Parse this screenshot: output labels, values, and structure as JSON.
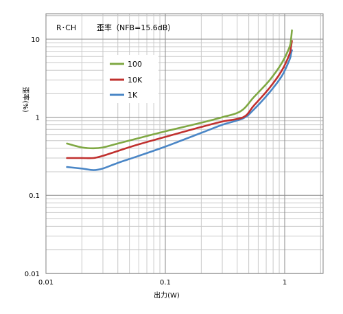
{
  "chart_data": {
    "type": "line",
    "title_left": "R･CH",
    "title_right": "歪率（NFB=15.6dB）",
    "xlabel": "出力(W)",
    "ylabel": "歪率(%)",
    "x_scale": "log",
    "y_scale": "log",
    "xlim": [
      0.01,
      2
    ],
    "ylim": [
      0.01,
      20
    ],
    "x_tick_labels": [
      "0.01",
      "0.1",
      "1"
    ],
    "y_tick_labels": [
      "0.01",
      "0.1",
      "1",
      "10"
    ],
    "grid": true,
    "legend_position": "top-left",
    "series": [
      {
        "name": "100",
        "color": "#7fa843",
        "x": [
          0.015,
          0.02,
          0.025,
          0.03,
          0.04,
          0.06,
          0.1,
          0.2,
          0.3,
          0.43,
          0.55,
          0.75,
          0.95,
          1.1,
          1.13,
          1.15
        ],
        "y": [
          0.46,
          0.41,
          0.4,
          0.41,
          0.46,
          0.54,
          0.66,
          0.85,
          1.0,
          1.2,
          1.8,
          3.0,
          5.0,
          8.0,
          10.0,
          13.0
        ]
      },
      {
        "name": "10K",
        "color": "#c0302e",
        "x": [
          0.015,
          0.02,
          0.025,
          0.03,
          0.04,
          0.06,
          0.1,
          0.2,
          0.3,
          0.45,
          0.55,
          0.75,
          0.95,
          1.1,
          1.13,
          1.15
        ],
        "y": [
          0.3,
          0.3,
          0.3,
          0.32,
          0.37,
          0.45,
          0.56,
          0.75,
          0.88,
          1.0,
          1.4,
          2.4,
          4.0,
          6.5,
          8.0,
          9.5
        ]
      },
      {
        "name": "1K",
        "color": "#4a86c6",
        "x": [
          0.015,
          0.02,
          0.025,
          0.03,
          0.04,
          0.06,
          0.1,
          0.2,
          0.3,
          0.45,
          0.55,
          0.75,
          0.95,
          1.1,
          1.13,
          1.15
        ],
        "y": [
          0.23,
          0.22,
          0.21,
          0.22,
          0.26,
          0.32,
          0.42,
          0.63,
          0.8,
          0.97,
          1.25,
          2.1,
          3.4,
          5.5,
          6.5,
          7.2
        ]
      }
    ]
  }
}
